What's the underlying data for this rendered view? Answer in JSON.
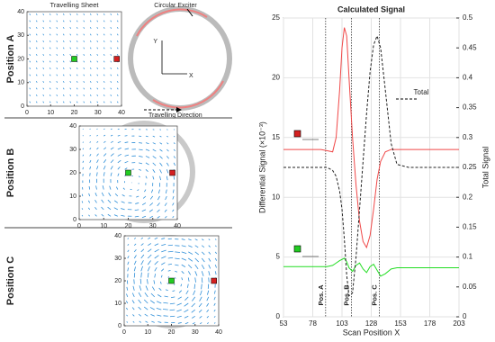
{
  "chart_data": [
    {
      "type": "quiver",
      "label": "Position A",
      "title": "Travelling Sheet",
      "xlim": [
        0,
        40
      ],
      "ylim": [
        0,
        40
      ],
      "xticks": [
        0,
        10,
        20,
        30,
        40
      ],
      "yticks": [
        0,
        10,
        20,
        30,
        40
      ],
      "annotations": [
        "Circular Exciter",
        "Travelling Direction",
        "Y",
        "X"
      ]
    },
    {
      "type": "quiver",
      "label": "Position B",
      "xlim": [
        0,
        40
      ],
      "ylim": [
        0,
        40
      ],
      "xticks": [
        0,
        10,
        20,
        30,
        40
      ],
      "yticks": [
        0,
        10,
        20,
        30,
        40
      ]
    },
    {
      "type": "quiver",
      "label": "Position C",
      "xlim": [
        0,
        40
      ],
      "ylim": [
        0,
        40
      ],
      "xticks": [
        0,
        10,
        20,
        30,
        40
      ],
      "yticks": [
        0,
        10,
        20,
        30,
        40
      ]
    },
    {
      "type": "line",
      "title": "Calculated Signal",
      "xlabel": "Scan Position X",
      "ylabel": "Differential Signal (×10⁻³)",
      "y2label": "Total Signal",
      "x": [
        53,
        70,
        85,
        90,
        95,
        98,
        101,
        103,
        105,
        107,
        109,
        112,
        115,
        118,
        121,
        124,
        127,
        130,
        133,
        136,
        140,
        145,
        150,
        160,
        180,
        203
      ],
      "series": [
        {
          "color": "#f04848",
          "values": [
            14,
            14,
            14,
            13.9,
            13.8,
            15,
            19,
            22.5,
            24.2,
            23.5,
            20,
            15,
            11,
            8,
            6.3,
            5.8,
            6.8,
            9,
            11.5,
            13,
            13.8,
            14,
            14,
            14,
            14,
            14
          ]
        },
        {
          "color": "#22dd22",
          "values": [
            4.2,
            4.2,
            4.2,
            4.2,
            4.3,
            4.5,
            4.7,
            4.8,
            4.9,
            4.6,
            4.1,
            3.8,
            4.3,
            4.5,
            4.0,
            3.7,
            4.2,
            4.4,
            3.9,
            3.4,
            3.6,
            4.0,
            4.1,
            4.1,
            4.1,
            4.1
          ]
        },
        {
          "name": "Total",
          "color": "#222222",
          "dashed": true,
          "axis": "y2",
          "values": [
            0.25,
            0.25,
            0.25,
            0.25,
            0.245,
            0.235,
            0.21,
            0.18,
            0.13,
            0.07,
            0.035,
            0.04,
            0.1,
            0.18,
            0.26,
            0.34,
            0.41,
            0.455,
            0.47,
            0.45,
            0.38,
            0.29,
            0.255,
            0.25,
            0.25,
            0.25
          ]
        }
      ],
      "vlines": [
        {
          "x": 89,
          "label": "Pos. A"
        },
        {
          "x": 111,
          "label": "Pos. B"
        },
        {
          "x": 135,
          "label": "Pos. C"
        }
      ],
      "xlim": [
        53,
        203
      ],
      "xticks": [
        53,
        78,
        103,
        128,
        153,
        178,
        203
      ],
      "ylim": [
        0,
        25
      ],
      "yticks": [
        0,
        5,
        10,
        15,
        20,
        25
      ],
      "y2lim": [
        0,
        0.5
      ],
      "y2ticks": [
        0,
        0.05,
        0.1,
        0.15,
        0.2,
        0.25,
        0.3,
        0.35,
        0.4,
        0.45,
        0.5
      ],
      "grid": true
    }
  ]
}
